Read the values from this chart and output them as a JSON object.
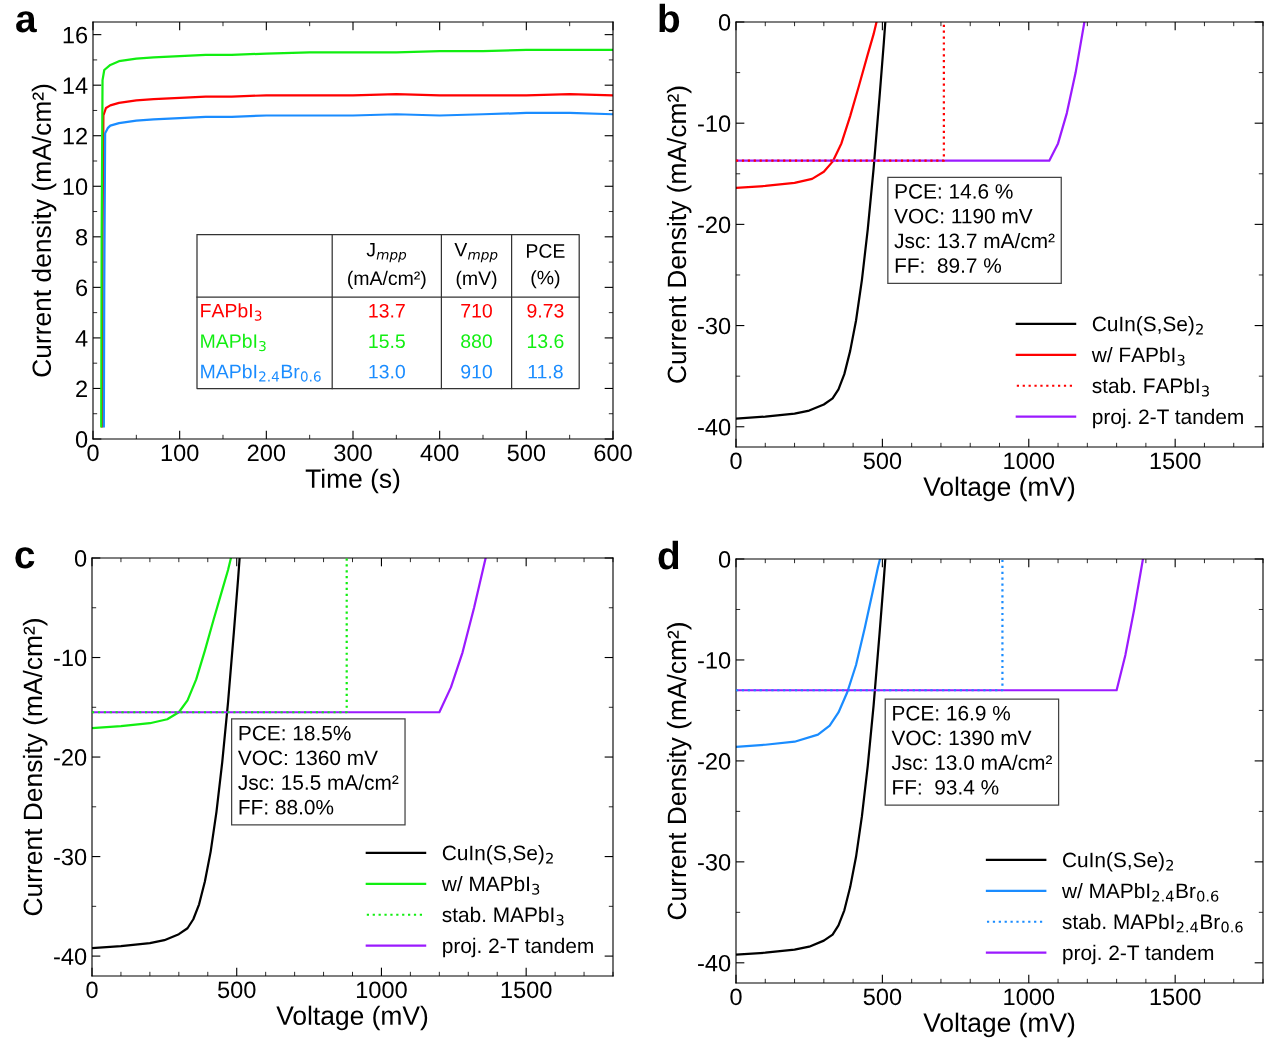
{
  "chart_data": [
    {
      "type": "line",
      "title": "a",
      "xlabel": "Time (s)",
      "ylabel": "Current density (mA/cm²)",
      "xlim": [
        0,
        600
      ],
      "ylim": [
        0,
        16.5
      ],
      "xticks": [
        0,
        100,
        200,
        300,
        400,
        500,
        600
      ],
      "yticks": [
        0,
        2,
        4,
        6,
        8,
        10,
        12,
        14,
        16
      ],
      "grid": false,
      "legend": false,
      "series": [
        {
          "color": "#ff0000",
          "x": [
            10.5,
            11,
            12,
            15,
            20,
            30,
            40,
            50,
            70,
            100,
            130,
            160,
            200,
            250,
            300,
            350,
            400,
            450,
            500,
            550,
            600
          ],
          "values": [
            0.5,
            8,
            12.8,
            13.1,
            13.2,
            13.3,
            13.35,
            13.4,
            13.45,
            13.5,
            13.55,
            13.55,
            13.6,
            13.6,
            13.6,
            13.65,
            13.6,
            13.6,
            13.6,
            13.65,
            13.6
          ]
        },
        {
          "color": "#11ee11",
          "x": [
            9.5,
            10,
            11,
            13,
            20,
            30,
            40,
            50,
            70,
            100,
            130,
            160,
            200,
            250,
            300,
            350,
            400,
            450,
            500,
            550,
            600
          ],
          "values": [
            0.5,
            8,
            14.2,
            14.6,
            14.8,
            14.95,
            15.0,
            15.05,
            15.1,
            15.15,
            15.2,
            15.2,
            15.25,
            15.3,
            15.3,
            15.3,
            15.35,
            15.35,
            15.4,
            15.4,
            15.4
          ]
        },
        {
          "color": "#1a8cff",
          "x": [
            12.5,
            13,
            14,
            17,
            20,
            30,
            40,
            50,
            70,
            100,
            130,
            160,
            200,
            250,
            300,
            350,
            400,
            450,
            500,
            550,
            600
          ],
          "values": [
            0.5,
            6,
            12.1,
            12.3,
            12.4,
            12.5,
            12.55,
            12.6,
            12.65,
            12.7,
            12.75,
            12.75,
            12.8,
            12.8,
            12.8,
            12.85,
            12.8,
            12.85,
            12.9,
            12.9,
            12.85
          ]
        }
      ],
      "annotations": [
        "J$_{mpp}$\n(mA/cm²)",
        "V$_{mpp}$\n(mV)",
        "PCE\n(%)",
        "FAPbI$_{3}$",
        "13.7",
        "710",
        "9.73",
        "MAPbI$_{3}$",
        "15.5",
        "880",
        "13.6",
        "MAPbI$_{2.4}$Br$_{0.6}$",
        "13.0",
        "910",
        "11.8"
      ]
    },
    {
      "type": "line",
      "title": "b",
      "xlabel": "Voltage (mV)",
      "ylabel": "Current Density (mA/cm²)",
      "xlim": [
        0,
        1800
      ],
      "ylim": [
        -42,
        0
      ],
      "xticks": [
        0,
        500,
        1000,
        1500
      ],
      "yticks": [
        -40,
        -30,
        -20,
        -10,
        0
      ],
      "grid": false,
      "legend": "bottom right",
      "series": [
        {
          "name": "CuIn(S,Se)$_{2}$",
          "color": "#000000",
          "x": [
            0,
            100,
            200,
            250,
            300,
            330,
            350,
            370,
            390,
            410,
            430,
            450,
            470,
            490,
            505,
            510
          ],
          "values": [
            -39.2,
            -39.0,
            -38.7,
            -38.4,
            -37.8,
            -37.2,
            -36.3,
            -34.8,
            -32.5,
            -29.5,
            -25.5,
            -20.5,
            -14.5,
            -7.5,
            -2,
            0
          ]
        },
        {
          "name": "w/ FAPbI$_{3}$",
          "color": "#ff0000",
          "x": [
            0,
            100,
            200,
            260,
            300,
            330,
            360,
            390,
            420,
            450,
            470,
            480
          ],
          "values": [
            -16.4,
            -16.2,
            -15.9,
            -15.5,
            -14.8,
            -13.8,
            -12.0,
            -9.3,
            -6.3,
            -3.2,
            -1.2,
            0
          ]
        },
        {
          "name": "stab. FAPbI$_{3}$",
          "color": "#ff0000",
          "line_style": "dotted",
          "x": [
            0,
            710,
            710
          ],
          "values": [
            -13.7,
            -13.7,
            0
          ]
        },
        {
          "name": "proj. 2-T tandem",
          "color": "#9b1aff",
          "x": [
            0,
            1070,
            1100,
            1130,
            1160,
            1190
          ],
          "values": [
            -13.7,
            -13.7,
            -12.0,
            -9.0,
            -5.0,
            0
          ]
        }
      ],
      "annotations": [
        "PCE: 14.6 %\nVOC: 1190 mV\nJsc: 13.7 mA/cm²\nFF:  89.7 %"
      ]
    },
    {
      "type": "line",
      "title": "c",
      "xlabel": "Voltage (mV)",
      "ylabel": "Current Density (mA/cm²)",
      "xlim": [
        0,
        1800
      ],
      "ylim": [
        -42,
        0
      ],
      "xticks": [
        0,
        500,
        1000,
        1500
      ],
      "yticks": [
        -40,
        -30,
        -20,
        -10,
        0
      ],
      "grid": false,
      "legend": "bottom right",
      "series": [
        {
          "name": "CuIn(S,Se)$_{2}$",
          "color": "#000000",
          "x": [
            0,
            100,
            200,
            250,
            300,
            330,
            350,
            370,
            390,
            410,
            430,
            450,
            470,
            490,
            505,
            510
          ],
          "values": [
            -39.2,
            -39.0,
            -38.7,
            -38.4,
            -37.8,
            -37.2,
            -36.3,
            -34.8,
            -32.5,
            -29.5,
            -25.5,
            -20.5,
            -14.5,
            -7.5,
            -2,
            0
          ]
        },
        {
          "name": "w/ MAPbI$_{3}$",
          "color": "#11ee11",
          "x": [
            0,
            100,
            200,
            260,
            300,
            330,
            360,
            390,
            420,
            450,
            470,
            480
          ],
          "values": [
            -17.1,
            -16.9,
            -16.6,
            -16.2,
            -15.5,
            -14.3,
            -12.2,
            -9.3,
            -6.2,
            -3.2,
            -1.2,
            0
          ]
        },
        {
          "name": "stab. MAPbI$_{3}$",
          "color": "#11ee11",
          "line_style": "dotted",
          "x": [
            0,
            880,
            880
          ],
          "values": [
            -15.5,
            -15.5,
            0
          ]
        },
        {
          "name": "proj. 2-T tandem",
          "color": "#9b1aff",
          "x": [
            0,
            1200,
            1240,
            1280,
            1320,
            1360
          ],
          "values": [
            -15.5,
            -15.5,
            -13.0,
            -9.5,
            -5.0,
            0
          ]
        }
      ],
      "annotations": [
        "PCE: 18.5%\nVOC: 1360 mV\nJsc: 15.5 mA/cm²\nFF: 88.0%"
      ]
    },
    {
      "type": "line",
      "title": "d",
      "xlabel": "Voltage (mV)",
      "ylabel": "Current Density (mA/cm²)",
      "xlim": [
        0,
        1800
      ],
      "ylim": [
        -42,
        0
      ],
      "xticks": [
        0,
        500,
        1000,
        1500
      ],
      "yticks": [
        -40,
        -30,
        -20,
        -10,
        0
      ],
      "grid": false,
      "legend": "bottom right",
      "series": [
        {
          "name": "CuIn(S,Se)$_{2}$",
          "color": "#000000",
          "x": [
            0,
            100,
            200,
            250,
            300,
            330,
            350,
            370,
            390,
            410,
            430,
            450,
            470,
            490,
            505,
            510
          ],
          "values": [
            -39.2,
            -39.0,
            -38.7,
            -38.4,
            -37.8,
            -37.2,
            -36.3,
            -34.8,
            -32.5,
            -29.5,
            -25.5,
            -20.5,
            -14.5,
            -7.5,
            -2,
            0
          ]
        },
        {
          "name": "w/ MAPbI$_{2.4}$Br$_{0.6}$",
          "color": "#1a8cff",
          "x": [
            0,
            100,
            200,
            280,
            320,
            350,
            380,
            410,
            440,
            465,
            485,
            492
          ],
          "values": [
            -18.6,
            -18.4,
            -18.1,
            -17.4,
            -16.5,
            -15.2,
            -13.2,
            -10.5,
            -6.8,
            -3.5,
            -0.8,
            0
          ]
        },
        {
          "name": "stab. MAPbI$_{2.4}$Br$_{0.6}$",
          "color": "#1a8cff",
          "line_style": "dotted",
          "x": [
            0,
            910,
            910
          ],
          "values": [
            -13.0,
            -13.0,
            0
          ]
        },
        {
          "name": "proj. 2-T tandem",
          "color": "#9b1aff",
          "x": [
            0,
            1300,
            1330,
            1360,
            1390
          ],
          "values": [
            -13.0,
            -13.0,
            -9.5,
            -5.0,
            0
          ]
        }
      ],
      "annotations": [
        "PCE: 16.9 %\nVOC: 1390 mV\nJsc: 13.0 mA/cm²\nFF:  93.4 %"
      ]
    }
  ]
}
